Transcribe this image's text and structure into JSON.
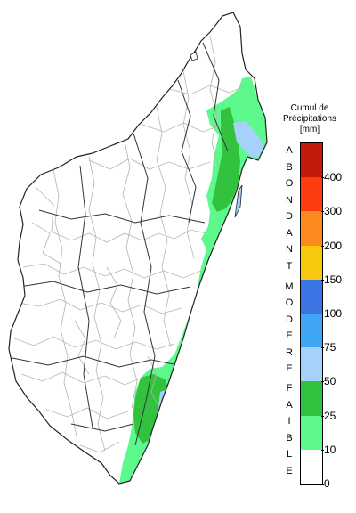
{
  "legend": {
    "title_lines": [
      "Cumul de",
      "Précipitations",
      "[mm]"
    ],
    "ticks": [
      "0",
      "10",
      "25",
      "50",
      "75",
      "100",
      "150",
      "200",
      "300",
      "400"
    ],
    "bins": [
      {
        "from": 0,
        "to": 10,
        "color": "#ffffff"
      },
      {
        "from": 10,
        "to": 25,
        "color": "#5df98c"
      },
      {
        "from": 25,
        "to": 50,
        "color": "#33c23d"
      },
      {
        "from": 50,
        "to": 75,
        "color": "#a5d2fa"
      },
      {
        "from": 75,
        "to": 100,
        "color": "#3fa6f5"
      },
      {
        "from": 100,
        "to": 150,
        "color": "#3b74e3"
      },
      {
        "from": 150,
        "to": 200,
        "color": "#f8c80e"
      },
      {
        "from": 200,
        "to": 300,
        "color": "#fb8a1f"
      },
      {
        "from": 300,
        "to": 400,
        "color": "#fd3d10"
      },
      {
        "from": 400,
        "to": 500,
        "color": "#c41a0c"
      }
    ],
    "categories": [
      {
        "label": "FAIBLE",
        "letters": [
          "F",
          "A",
          "I",
          "B",
          "L",
          "E"
        ]
      },
      {
        "label": "MODERE",
        "letters": [
          "M",
          "O",
          "D",
          "E",
          "R",
          "E"
        ]
      },
      {
        "label": "ABONDANT",
        "letters": [
          "A",
          "B",
          "O",
          "N",
          "D",
          "A",
          "N",
          "T"
        ]
      }
    ]
  },
  "map": {
    "region": "Madagascar",
    "colors": {
      "land": "#ffffff",
      "boundary": "#8c8c8c",
      "outline": "#222222",
      "district": "#b4b4b4"
    }
  }
}
